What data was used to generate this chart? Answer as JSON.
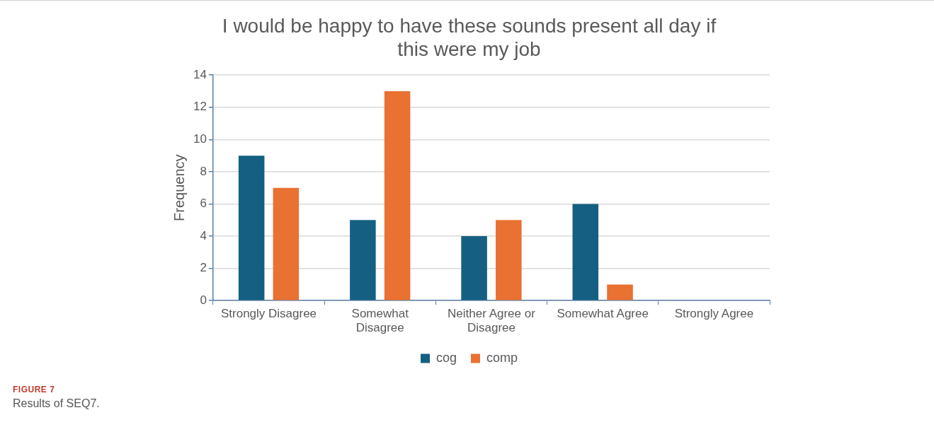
{
  "chart_data": {
    "type": "bar",
    "title": "I would be happy to have these sounds present all day if this were my job",
    "categories": [
      "Strongly Disagree",
      "Somewhat Disagree",
      "Neither Agree or Disagree",
      "Somewhat Agree",
      "Strongly Agree"
    ],
    "series": [
      {
        "name": "cog",
        "color": "#156082",
        "values": [
          9,
          5,
          4,
          6,
          0
        ]
      },
      {
        "name": "comp",
        "color": "#e97132",
        "values": [
          7,
          13,
          5,
          1,
          0
        ]
      }
    ],
    "ylabel": "Frequency",
    "ylim": [
      0,
      14
    ],
    "yticks": [
      0,
      2,
      4,
      6,
      8,
      10,
      12,
      14
    ],
    "grid": "y",
    "legend": "bottom",
    "annotations": [
      "FIGURE 7",
      "Results of SEQ7."
    ]
  }
}
